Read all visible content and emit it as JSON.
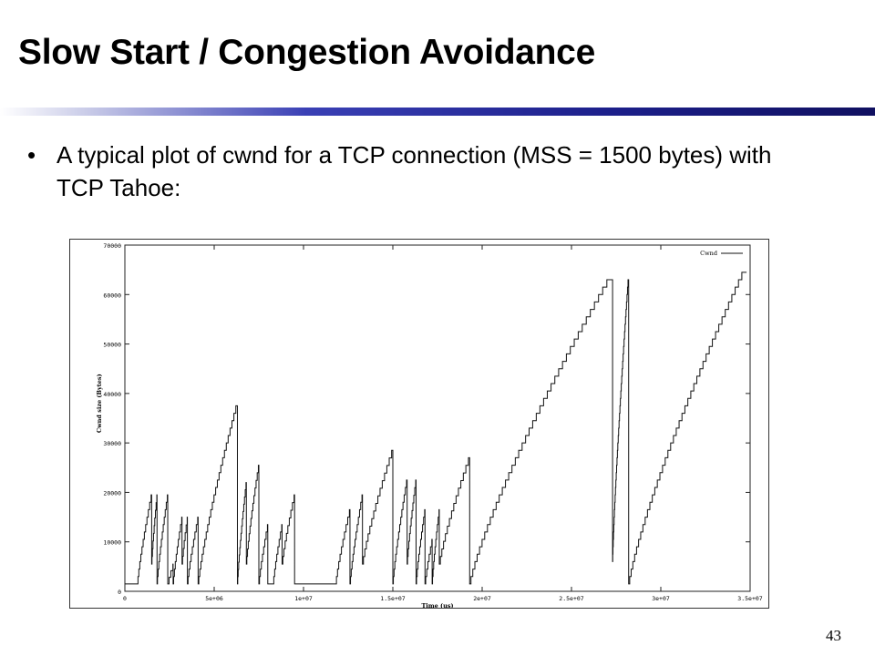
{
  "slide": {
    "title": "Slow Start / Congestion Avoidance",
    "bullet_marker": "•",
    "bullet_text": " A typical plot of cwnd for a TCP connection (MSS = 1500 bytes) with TCP Tahoe:",
    "page_number": "43"
  },
  "chart_data": {
    "type": "line",
    "title": "",
    "xlabel": "Time (us)",
    "ylabel": "Cwnd size (Bytes)",
    "legend": [
      "Cwnd"
    ],
    "legend_position": "top-right",
    "xlim": [
      0,
      35000000
    ],
    "ylim": [
      0,
      70000
    ],
    "x_ticks": [
      {
        "v": 0,
        "label": "0"
      },
      {
        "v": 5000000,
        "label": "5e+06"
      },
      {
        "v": 10000000,
        "label": "1e+07"
      },
      {
        "v": 15000000,
        "label": "1.5e+07"
      },
      {
        "v": 20000000,
        "label": "2e+07"
      },
      {
        "v": 25000000,
        "label": "2.5e+07"
      },
      {
        "v": 30000000,
        "label": "3e+07"
      },
      {
        "v": 35000000,
        "label": "3.5e+07"
      }
    ],
    "y_ticks": [
      {
        "v": 0,
        "label": "0"
      },
      {
        "v": 10000,
        "label": "10000"
      },
      {
        "v": 20000,
        "label": "20000"
      },
      {
        "v": 30000,
        "label": "30000"
      },
      {
        "v": 40000,
        "label": "40000"
      },
      {
        "v": 50000,
        "label": "50000"
      },
      {
        "v": 60000,
        "label": "60000"
      },
      {
        "v": 70000,
        "label": "70000"
      }
    ],
    "series": [
      {
        "name": "Cwnd",
        "mss": 1500,
        "growth_note_free": true,
        "episodes": [
          {
            "start": 0,
            "end": 700000,
            "from": 1500,
            "to": 1500
          },
          {
            "start": 700000,
            "end": 1500000,
            "from": 1500,
            "to": 19500
          },
          {
            "start": 1500000,
            "end": 1800000,
            "from": 5500,
            "to": 19500
          },
          {
            "start": 1800000,
            "end": 2400000,
            "from": 1500,
            "to": 19500
          },
          {
            "start": 2400000,
            "end": 2700000,
            "from": 1500,
            "to": 5500
          },
          {
            "start": 2700000,
            "end": 3200000,
            "from": 1500,
            "to": 15000
          },
          {
            "start": 3200000,
            "end": 3500000,
            "from": 5500,
            "to": 15000
          },
          {
            "start": 3500000,
            "end": 4100000,
            "from": 1500,
            "to": 15000
          },
          {
            "start": 4100000,
            "end": 6300000,
            "from": 1500,
            "to": 37500
          },
          {
            "start": 6300000,
            "end": 6800000,
            "from": 1500,
            "to": 22000
          },
          {
            "start": 6800000,
            "end": 7500000,
            "from": 5500,
            "to": 25500
          },
          {
            "start": 7500000,
            "end": 8000000,
            "from": 1500,
            "to": 13500
          },
          {
            "start": 8000000,
            "end": 8300000,
            "from": 1500,
            "to": 1500
          },
          {
            "start": 8300000,
            "end": 8800000,
            "from": 1500,
            "to": 13500
          },
          {
            "start": 8800000,
            "end": 9500000,
            "from": 5500,
            "to": 19500
          },
          {
            "start": 9500000,
            "end": 10000000,
            "from": 1500,
            "to": 1500
          },
          {
            "start": 10000000,
            "end": 11800000,
            "from": 1500,
            "to": 1500
          },
          {
            "start": 11800000,
            "end": 12600000,
            "from": 1500,
            "to": 16500
          },
          {
            "start": 12600000,
            "end": 13300000,
            "from": 1500,
            "to": 19500
          },
          {
            "start": 13300000,
            "end": 15000000,
            "from": 5500,
            "to": 28500
          },
          {
            "start": 15000000,
            "end": 15800000,
            "from": 1500,
            "to": 22500
          },
          {
            "start": 15800000,
            "end": 16300000,
            "from": 5500,
            "to": 22500
          },
          {
            "start": 16300000,
            "end": 16800000,
            "from": 1500,
            "to": 16500
          },
          {
            "start": 16800000,
            "end": 17200000,
            "from": 1500,
            "to": 10500
          },
          {
            "start": 17200000,
            "end": 17600000,
            "from": 1500,
            "to": 16500
          },
          {
            "start": 17600000,
            "end": 19300000,
            "from": 5500,
            "to": 27000
          },
          {
            "start": 19300000,
            "end": 27300000,
            "from": 1500,
            "to": 63000
          },
          {
            "start": 27300000,
            "end": 28200000,
            "from": 6000,
            "to": 63000
          },
          {
            "start": 28200000,
            "end": 34800000,
            "from": 1500,
            "to": 64500
          }
        ]
      }
    ]
  },
  "colors": {
    "text": "#000000",
    "plot_line": "#111111",
    "title_rule_dark": "#101060",
    "title_rule_mid": "#3a40b5"
  }
}
